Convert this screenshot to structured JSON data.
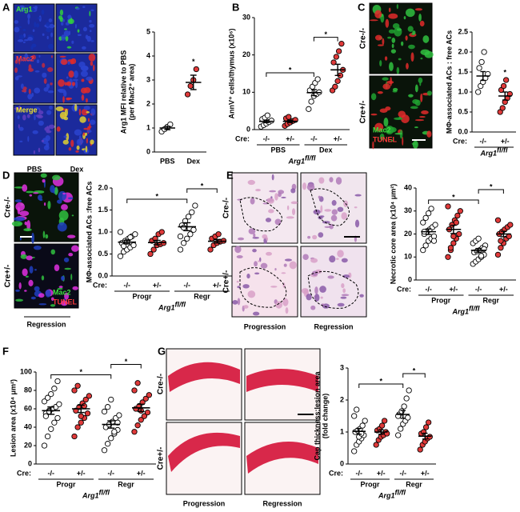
{
  "panel_letters": [
    "A",
    "B",
    "C",
    "D",
    "E",
    "F",
    "G"
  ],
  "image_texts": {
    "A": {
      "rows": [
        "Arg1",
        "Mac2",
        "Merge"
      ],
      "cols": [
        "PBS",
        "Dex"
      ]
    },
    "C": {
      "rows": [
        "Cre-/-",
        "Cre+/-"
      ],
      "stains": [
        "Mac2",
        "TUNEL"
      ]
    },
    "D": {
      "rows": [
        "Cre-/-",
        "Cre+/-"
      ],
      "stains": [
        "Mac2",
        "TUNEL"
      ],
      "cols": [
        "Regression"
      ]
    },
    "E": {
      "rows": [
        "Cre-/-",
        "Cre+/-"
      ],
      "cols": [
        "Progression",
        "Regression"
      ]
    },
    "G": {
      "rows": [
        "Cre-/-",
        "Cre+/-"
      ],
      "cols": [
        "Progression",
        "Regression"
      ]
    }
  },
  "chart_data": [
    {
      "type": "dot",
      "ylabel": [
        "Arg1 MFI relative to PBS",
        "(per Mac2⁺ area)"
      ],
      "categories": [
        "PBS",
        "Dex"
      ],
      "point_colors": [
        "#ffffff",
        "#e03a3a"
      ],
      "points": [
        [
          0.85,
          0.95,
          1.05,
          1.15
        ],
        [
          2.4,
          2.75,
          3.0,
          3.45
        ]
      ],
      "means": [
        1.0,
        2.9
      ],
      "sems": [
        0.07,
        0.3
      ],
      "ylim": [
        0,
        5
      ],
      "yticks": [
        0,
        1,
        2,
        3,
        4,
        5
      ],
      "significance": [
        {
          "categories": [
            1
          ],
          "label": "*"
        }
      ]
    },
    {
      "type": "dot",
      "ylabel": [
        "AnnV⁺ cells/thymus (x10⁶)"
      ],
      "categories": [
        "-/-",
        "+/-",
        "-/-",
        "+/-"
      ],
      "cre_label": "Cre:",
      "groups": [
        "PBS",
        "Dex"
      ],
      "genotype": "Arg1",
      "genotype_sup": "fl/fl",
      "point_colors": [
        "#ffffff",
        "#e03a3a",
        "#ffffff",
        "#e03a3a"
      ],
      "points": [
        [
          0.8,
          1.2,
          1.6,
          2.0,
          2.4,
          2.8,
          3.2,
          3.8
        ],
        [
          1.0,
          1.5,
          1.9,
          2.3,
          2.6,
          3.0,
          3.4
        ],
        [
          5.5,
          7.5,
          9,
          9.5,
          10,
          10.5,
          11.5,
          12.5,
          13.5
        ],
        [
          10.5,
          11.5,
          13,
          14.5,
          16,
          18,
          19.5,
          21,
          23
        ]
      ],
      "means": [
        2.2,
        2.2,
        9.9,
        16
      ],
      "sems": [
        0.35,
        0.3,
        0.8,
        1.5
      ],
      "ylim": [
        0,
        30
      ],
      "yticks": [
        0,
        10,
        20,
        30
      ],
      "significance": [
        {
          "categories": [
            0,
            2
          ],
          "label": "*"
        },
        {
          "categories": [
            2,
            3
          ],
          "label": "*"
        }
      ]
    },
    {
      "type": "dot",
      "ylabel": [
        "MΦ-associated ACs : free ACs"
      ],
      "categories": [
        "-/-",
        "+/-"
      ],
      "cre_label": "Cre:",
      "genotype": "Arg1",
      "genotype_sup": "fl/fl",
      "point_colors": [
        "#ffffff",
        "#e03a3a"
      ],
      "points": [
        [
          1.0,
          1.15,
          1.25,
          1.35,
          1.45,
          1.6,
          1.75,
          2.0
        ],
        [
          0.5,
          0.6,
          0.75,
          0.85,
          0.95,
          1.05,
          1.15,
          1.3
        ]
      ],
      "means": [
        1.4,
        0.9
      ],
      "sems": [
        0.11,
        0.1
      ],
      "ylim": [
        0,
        2.5
      ],
      "yticks": [
        {
          "value": 0,
          "label": "0.0"
        },
        0.5,
        {
          "value": 1,
          "label": "1.0"
        },
        1.5,
        {
          "value": 2,
          "label": "2.0"
        },
        2.5
      ],
      "significance": [
        {
          "categories": [
            1
          ],
          "label": "*"
        }
      ]
    },
    {
      "type": "dot",
      "ylabel": [
        "MΦ-associated ACs :free ACs"
      ],
      "categories": [
        "-/-",
        "+/-",
        "-/-",
        "+/-"
      ],
      "cre_label": "Cre:",
      "groups": [
        "Progr",
        "Regr"
      ],
      "genotype": "Arg1",
      "genotype_sup": "fl/fl",
      "point_colors": [
        "#ffffff",
        "#e03a3a",
        "#ffffff",
        "#e03a3a"
      ],
      "points": [
        [
          0.45,
          0.55,
          0.6,
          0.65,
          0.7,
          0.75,
          0.8,
          0.85,
          0.9,
          0.95,
          1.0,
          0.68,
          0.78,
          0.88
        ],
        [
          0.5,
          0.6,
          0.7,
          0.72,
          0.75,
          0.8,
          0.85,
          0.95,
          1.0
        ],
        [
          0.6,
          0.75,
          0.85,
          0.95,
          1.05,
          1.15,
          1.25,
          1.35,
          1.45,
          1.6,
          0.9,
          1.1
        ],
        [
          0.6,
          0.7,
          0.75,
          0.78,
          0.8,
          0.85,
          0.9,
          0.95
        ]
      ],
      "means": [
        0.77,
        0.76,
        1.12,
        0.79
      ],
      "sems": [
        0.04,
        0.05,
        0.09,
        0.04
      ],
      "ylim": [
        0,
        2
      ],
      "yticks": [
        {
          "value": 0,
          "label": "0.0"
        },
        0.5,
        {
          "value": 1,
          "label": "1.0"
        },
        1.5,
        {
          "value": 2,
          "label": "2.0"
        }
      ],
      "significance": [
        {
          "categories": [
            0,
            2
          ],
          "label": "*"
        },
        {
          "categories": [
            2,
            3
          ],
          "label": "*"
        }
      ]
    },
    {
      "type": "dot",
      "ylabel": [
        "Necrotic core area (x10⁴ μm²)"
      ],
      "categories": [
        "-/-",
        "+/-",
        "-/-",
        "+/-"
      ],
      "cre_label": "Cre:",
      "groups": [
        "Progr",
        "Regr"
      ],
      "genotype": "Arg1",
      "genotype_sup": "fl/fl",
      "point_colors": [
        "#ffffff",
        "#e03a3a",
        "#ffffff",
        "#e03a3a"
      ],
      "points": [
        [
          13,
          15,
          17,
          18,
          19,
          20,
          21,
          22,
          23,
          24,
          25,
          27,
          29,
          31,
          17,
          21
        ],
        [
          10,
          13,
          16,
          18,
          20,
          22,
          24,
          26,
          28,
          30,
          32,
          14,
          19,
          25
        ],
        [
          7,
          8,
          9,
          10,
          11,
          12,
          12.5,
          13,
          14,
          15,
          16,
          17,
          18,
          10.5,
          13.5
        ],
        [
          11,
          14,
          16,
          18,
          19,
          20,
          21,
          22,
          23,
          24,
          26,
          17
        ]
      ],
      "means": [
        21,
        22,
        12.9,
        20
      ],
      "sems": [
        1.2,
        1.8,
        0.8,
        1.2
      ],
      "ylim": [
        0,
        40
      ],
      "yticks": [
        0,
        10,
        20,
        30,
        40
      ],
      "significance": [
        {
          "categories": [
            0,
            2
          ],
          "label": "*"
        },
        {
          "categories": [
            2,
            3
          ],
          "label": "*"
        }
      ]
    },
    {
      "type": "dot",
      "ylabel": [
        "Lesion area (x10⁴ μm²)"
      ],
      "categories": [
        "-/-",
        "+/-",
        "-/-",
        "+/-"
      ],
      "cre_label": "Cre:",
      "groups": [
        "Progr",
        "Regr"
      ],
      "genotype": "Arg1",
      "genotype_sup": "fl/fl",
      "point_colors": [
        "#ffffff",
        "#e03a3a",
        "#ffffff",
        "#e03a3a"
      ],
      "points": [
        [
          20,
          30,
          38,
          45,
          50,
          55,
          58,
          60,
          62,
          65,
          68,
          72,
          76,
          82,
          90,
          52,
          57
        ],
        [
          30,
          40,
          45,
          50,
          55,
          58,
          62,
          66,
          70,
          74,
          80,
          85,
          52,
          63
        ],
        [
          15,
          22,
          28,
          33,
          37,
          40,
          43,
          46,
          50,
          53,
          57,
          62,
          70,
          35,
          45
        ],
        [
          35,
          42,
          48,
          52,
          56,
          60,
          63,
          67,
          71,
          75,
          80,
          88,
          58
        ]
      ],
      "means": [
        58,
        60,
        43,
        61
      ],
      "sems": [
        4,
        4,
        4,
        4
      ],
      "ylim": [
        0,
        100
      ],
      "yticks": [
        0,
        20,
        40,
        60,
        80,
        100
      ],
      "significance": [
        {
          "categories": [
            0,
            2
          ],
          "label": "*"
        },
        {
          "categories": [
            2,
            3
          ],
          "label": "*"
        }
      ]
    },
    {
      "type": "dot",
      "ylabel": [
        "Cap thickness:lesion area",
        "(fold change)"
      ],
      "categories": [
        "-/-",
        "+/-",
        "-/-",
        "+/-"
      ],
      "cre_label": "Cre:",
      "groups": [
        "Progr",
        "Regr"
      ],
      "genotype": "Arg1",
      "genotype_sup": "fl/fl",
      "point_colors": [
        "#ffffff",
        "#e03a3a",
        "#ffffff",
        "#e03a3a"
      ],
      "points": [
        [
          0.4,
          0.6,
          0.7,
          0.8,
          0.9,
          1.0,
          1.05,
          1.1,
          1.2,
          1.35,
          1.5,
          1.7,
          0.85,
          0.95
        ],
        [
          0.6,
          0.75,
          0.85,
          0.9,
          1.0,
          1.05,
          1.1,
          1.2,
          1.35,
          0.95
        ],
        [
          0.9,
          1.1,
          1.25,
          1.35,
          1.45,
          1.55,
          1.65,
          1.8,
          2.05,
          2.3,
          1.5
        ],
        [
          0.45,
          0.6,
          0.7,
          0.8,
          0.85,
          0.95,
          1.0,
          1.15,
          1.3
        ]
      ],
      "means": [
        1.02,
        1.0,
        1.55,
        0.87
      ],
      "sems": [
        0.09,
        0.07,
        0.12,
        0.09
      ],
      "ylim": [
        0,
        3
      ],
      "yticks": [
        0,
        1,
        2,
        3
      ],
      "significance": [
        {
          "categories": [
            0,
            2
          ],
          "label": "*"
        },
        {
          "categories": [
            2,
            3
          ],
          "label": "*"
        }
      ]
    }
  ]
}
